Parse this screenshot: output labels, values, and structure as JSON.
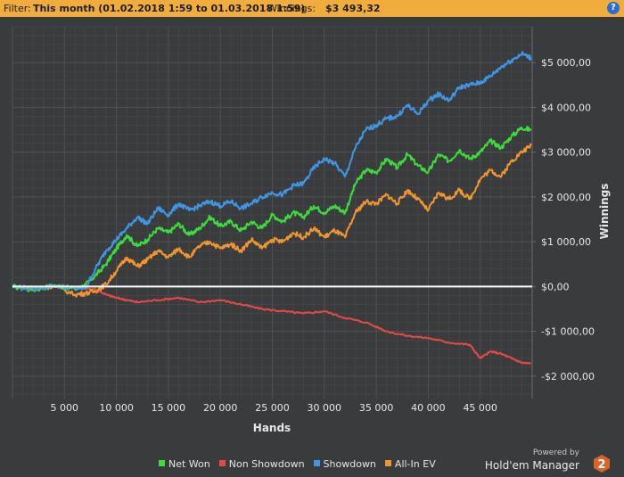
{
  "filter": {
    "prefix": "Filter:",
    "value": "This month (01.02.2018 1:59 to 01.03.2018 1:59)",
    "winnings_label": "Winnings:",
    "winnings_value": "$3 493,32",
    "help_symbol": "?"
  },
  "branding": {
    "powered_by": "Powered by",
    "product": "Hold'em Manager",
    "logo_number": "2",
    "logo_color": "#d8642a"
  },
  "colors": {
    "background": "#3a3b3d",
    "grid": "#4b4c4f",
    "axis_text": "#e6e6e6",
    "zero_line": "#ffffff",
    "filter_bar": "#f1ad3c"
  },
  "chart_data": {
    "type": "line",
    "xlabel": "Hands",
    "ylabel": "Winnings",
    "xlim": [
      0,
      50000
    ],
    "ylim": [
      -2500,
      5800
    ],
    "x_ticks": [
      5000,
      10000,
      15000,
      20000,
      25000,
      30000,
      35000,
      40000,
      45000
    ],
    "x_tick_labels": [
      "5 000",
      "10 000",
      "15 000",
      "20 000",
      "25 000",
      "30 000",
      "35 000",
      "40 000",
      "45 000"
    ],
    "y_ticks": [
      -2000,
      -1000,
      0,
      1000,
      2000,
      3000,
      4000,
      5000
    ],
    "y_tick_labels": [
      "-$2 000,00",
      "-$1 000,00",
      "$0,00",
      "$1 000,00",
      "$2 000,00",
      "$3 000,00",
      "$4 000,00",
      "$5 000,00"
    ],
    "grid": true,
    "legend_position": "bottom",
    "series": [
      {
        "name": "Net Won",
        "color": "#3ddc3d",
        "points": [
          [
            0,
            0
          ],
          [
            2000,
            -80
          ],
          [
            4000,
            30
          ],
          [
            6000,
            -60
          ],
          [
            7000,
            30
          ],
          [
            8000,
            250
          ],
          [
            9000,
            500
          ],
          [
            10000,
            850
          ],
          [
            11000,
            1150
          ],
          [
            12000,
            900
          ],
          [
            13000,
            1050
          ],
          [
            14000,
            1300
          ],
          [
            15000,
            1200
          ],
          [
            16000,
            1400
          ],
          [
            17000,
            1150
          ],
          [
            18000,
            1300
          ],
          [
            19000,
            1550
          ],
          [
            20000,
            1350
          ],
          [
            21000,
            1450
          ],
          [
            22000,
            1250
          ],
          [
            23000,
            1450
          ],
          [
            24000,
            1300
          ],
          [
            25000,
            1600
          ],
          [
            26000,
            1450
          ],
          [
            27000,
            1650
          ],
          [
            28000,
            1550
          ],
          [
            29000,
            1800
          ],
          [
            30000,
            1650
          ],
          [
            31000,
            1800
          ],
          [
            32000,
            1650
          ],
          [
            33000,
            2300
          ],
          [
            34000,
            2600
          ],
          [
            35000,
            2550
          ],
          [
            36000,
            2850
          ],
          [
            37000,
            2650
          ],
          [
            38000,
            2950
          ],
          [
            39000,
            2700
          ],
          [
            40000,
            2550
          ],
          [
            41000,
            2950
          ],
          [
            42000,
            2800
          ],
          [
            43000,
            3050
          ],
          [
            44000,
            2850
          ],
          [
            45000,
            3000
          ],
          [
            46000,
            3250
          ],
          [
            47000,
            3100
          ],
          [
            48000,
            3350
          ],
          [
            49000,
            3550
          ],
          [
            49900,
            3493
          ]
        ]
      },
      {
        "name": "Non Showdown",
        "color": "#e64a47",
        "points": [
          [
            0,
            0
          ],
          [
            2000,
            -30
          ],
          [
            4000,
            20
          ],
          [
            6000,
            -20
          ],
          [
            8000,
            -60
          ],
          [
            9000,
            -180
          ],
          [
            10000,
            -250
          ],
          [
            11000,
            -300
          ],
          [
            12000,
            -350
          ],
          [
            14000,
            -300
          ],
          [
            16000,
            -250
          ],
          [
            18000,
            -350
          ],
          [
            20000,
            -300
          ],
          [
            22000,
            -400
          ],
          [
            24000,
            -500
          ],
          [
            26000,
            -550
          ],
          [
            28000,
            -600
          ],
          [
            30000,
            -550
          ],
          [
            32000,
            -700
          ],
          [
            34000,
            -800
          ],
          [
            36000,
            -1000
          ],
          [
            38000,
            -1100
          ],
          [
            40000,
            -1150
          ],
          [
            42000,
            -1250
          ],
          [
            44000,
            -1300
          ],
          [
            45000,
            -1600
          ],
          [
            46000,
            -1450
          ],
          [
            47000,
            -1500
          ],
          [
            48000,
            -1600
          ],
          [
            49000,
            -1700
          ],
          [
            49900,
            -1720
          ]
        ]
      },
      {
        "name": "Showdown",
        "color": "#3e97e6",
        "points": [
          [
            0,
            0
          ],
          [
            2000,
            -50
          ],
          [
            4000,
            20
          ],
          [
            6000,
            -40
          ],
          [
            7000,
            -40
          ],
          [
            8000,
            400
          ],
          [
            9000,
            800
          ],
          [
            10000,
            1050
          ],
          [
            11000,
            1300
          ],
          [
            12000,
            1550
          ],
          [
            13000,
            1400
          ],
          [
            14000,
            1750
          ],
          [
            15000,
            1600
          ],
          [
            16000,
            1850
          ],
          [
            17000,
            1700
          ],
          [
            18000,
            1800
          ],
          [
            19000,
            1900
          ],
          [
            20000,
            1800
          ],
          [
            21000,
            1900
          ],
          [
            22000,
            1750
          ],
          [
            23000,
            1850
          ],
          [
            24000,
            2000
          ],
          [
            25000,
            2100
          ],
          [
            26000,
            2050
          ],
          [
            27000,
            2250
          ],
          [
            28000,
            2300
          ],
          [
            29000,
            2650
          ],
          [
            30000,
            2850
          ],
          [
            31000,
            2750
          ],
          [
            32000,
            2450
          ],
          [
            33000,
            3100
          ],
          [
            34000,
            3500
          ],
          [
            35000,
            3600
          ],
          [
            36000,
            3750
          ],
          [
            37000,
            3800
          ],
          [
            38000,
            4050
          ],
          [
            39000,
            3850
          ],
          [
            40000,
            4150
          ],
          [
            41000,
            4300
          ],
          [
            42000,
            4150
          ],
          [
            43000,
            4450
          ],
          [
            44000,
            4500
          ],
          [
            45000,
            4550
          ],
          [
            46000,
            4700
          ],
          [
            47000,
            4900
          ],
          [
            48000,
            5050
          ],
          [
            49000,
            5200
          ],
          [
            49900,
            5100
          ]
        ]
      },
      {
        "name": "All-In EV",
        "color": "#f0962e",
        "points": [
          [
            0,
            0
          ],
          [
            2000,
            -60
          ],
          [
            4000,
            10
          ],
          [
            6000,
            -180
          ],
          [
            7000,
            -150
          ],
          [
            8000,
            -100
          ],
          [
            9000,
            50
          ],
          [
            10000,
            350
          ],
          [
            11000,
            650
          ],
          [
            12000,
            450
          ],
          [
            13000,
            600
          ],
          [
            14000,
            800
          ],
          [
            15000,
            650
          ],
          [
            16000,
            850
          ],
          [
            17000,
            650
          ],
          [
            18000,
            900
          ],
          [
            19000,
            1000
          ],
          [
            20000,
            850
          ],
          [
            21000,
            950
          ],
          [
            22000,
            800
          ],
          [
            23000,
            1050
          ],
          [
            24000,
            850
          ],
          [
            25000,
            1050
          ],
          [
            26000,
            1000
          ],
          [
            27000,
            1200
          ],
          [
            28000,
            1100
          ],
          [
            29000,
            1300
          ],
          [
            30000,
            1100
          ],
          [
            31000,
            1250
          ],
          [
            32000,
            1100
          ],
          [
            33000,
            1650
          ],
          [
            34000,
            1900
          ],
          [
            35000,
            1850
          ],
          [
            36000,
            2050
          ],
          [
            37000,
            1850
          ],
          [
            38000,
            2150
          ],
          [
            39000,
            1950
          ],
          [
            40000,
            1700
          ],
          [
            41000,
            2100
          ],
          [
            42000,
            1950
          ],
          [
            43000,
            2150
          ],
          [
            44000,
            1950
          ],
          [
            45000,
            2400
          ],
          [
            46000,
            2600
          ],
          [
            47000,
            2450
          ],
          [
            48000,
            2800
          ],
          [
            49000,
            3000
          ],
          [
            49900,
            3150
          ]
        ]
      }
    ]
  }
}
